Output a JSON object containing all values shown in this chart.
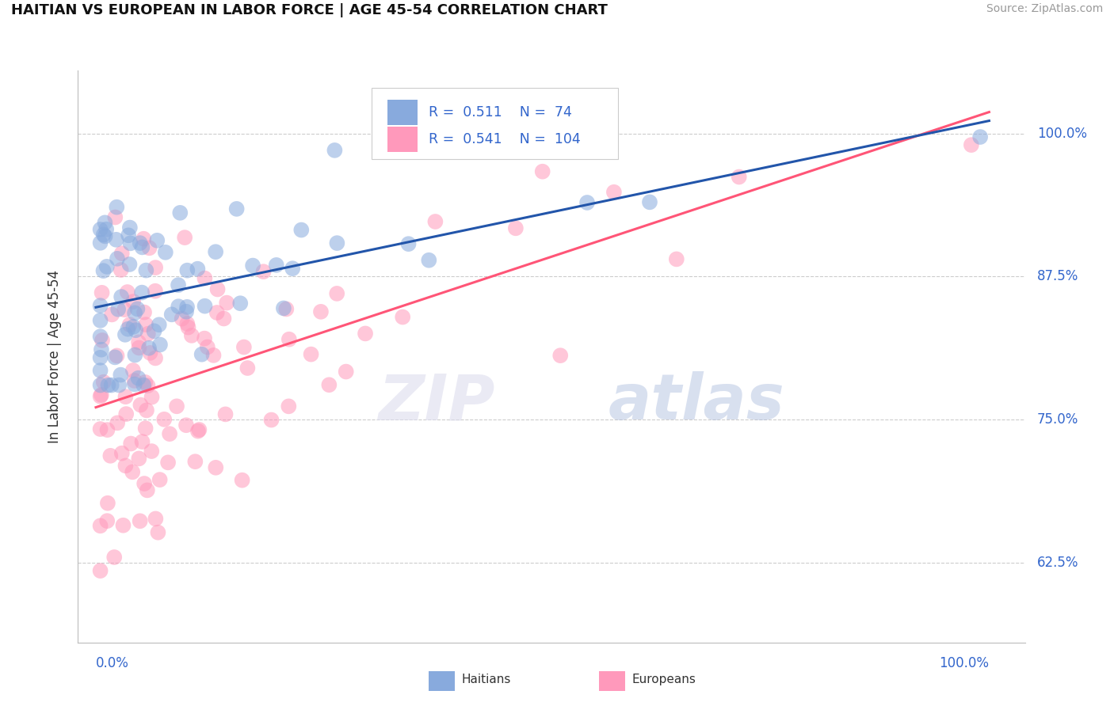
{
  "title": "HAITIAN VS EUROPEAN IN LABOR FORCE | AGE 45-54 CORRELATION CHART",
  "source": "Source: ZipAtlas.com",
  "ylabel": "In Labor Force | Age 45-54",
  "ytick_labels": [
    "62.5%",
    "75.0%",
    "87.5%",
    "100.0%"
  ],
  "ytick_values": [
    0.625,
    0.75,
    0.875,
    1.0
  ],
  "xlim": [
    -0.02,
    1.04
  ],
  "ylim": [
    0.555,
    1.055
  ],
  "legend_r_blue": "0.511",
  "legend_n_blue": "74",
  "legend_r_pink": "0.541",
  "legend_n_pink": "104",
  "blue_color": "#88AADD",
  "pink_color": "#FF99BB",
  "blue_line_color": "#2255AA",
  "pink_line_color": "#FF5577",
  "blue_seed": 12,
  "pink_seed": 7,
  "n_blue": 74,
  "n_pink": 104,
  "blue_intercept": 0.845,
  "blue_slope": 0.155,
  "pink_intercept": 0.775,
  "pink_slope": 0.225,
  "blue_noise_std": 0.045,
  "pink_noise_std": 0.065
}
